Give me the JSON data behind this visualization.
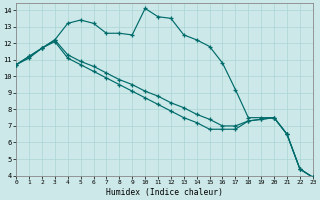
{
  "xlabel": "Humidex (Indice chaleur)",
  "xlim": [
    0,
    23
  ],
  "ylim": [
    4,
    14.4
  ],
  "xticks": [
    0,
    1,
    2,
    3,
    4,
    5,
    6,
    7,
    8,
    9,
    10,
    11,
    12,
    13,
    14,
    15,
    16,
    17,
    18,
    19,
    20,
    21,
    22,
    23
  ],
  "yticks": [
    4,
    5,
    6,
    7,
    8,
    9,
    10,
    11,
    12,
    13,
    14
  ],
  "bg_color": "#cce8e8",
  "line_color": "#006b6b",
  "grid_color": "#aad4d4",
  "line1_x": [
    0,
    1,
    2,
    3,
    4,
    5,
    6,
    7,
    8,
    9,
    10,
    11,
    12,
    13,
    14,
    15,
    16,
    17,
    18,
    19,
    20,
    21,
    22,
    23
  ],
  "line1_y": [
    10.7,
    11.1,
    11.7,
    12.2,
    13.2,
    13.4,
    13.2,
    12.6,
    12.6,
    12.5,
    14.1,
    13.6,
    13.5,
    12.5,
    12.2,
    11.8,
    10.8,
    9.2,
    7.5,
    7.5,
    7.5,
    6.5,
    4.4,
    3.9
  ],
  "line2_x": [
    0,
    1,
    2,
    3,
    4,
    5,
    6,
    7,
    8,
    9,
    10,
    11,
    12,
    13,
    14,
    15,
    16,
    17,
    18,
    19,
    20,
    21,
    22,
    23
  ],
  "line2_y": [
    10.7,
    11.2,
    11.7,
    12.1,
    11.1,
    10.7,
    10.3,
    9.9,
    9.5,
    9.1,
    8.7,
    8.3,
    7.9,
    7.5,
    7.2,
    6.8,
    6.8,
    6.8,
    7.3,
    7.4,
    7.5,
    6.5,
    4.4,
    3.9
  ],
  "line3_x": [
    0,
    1,
    2,
    3,
    4,
    5,
    6,
    7,
    8,
    9,
    10,
    11,
    12,
    13,
    14,
    15,
    16,
    17,
    18,
    19,
    20,
    21,
    22,
    23
  ],
  "line3_y": [
    10.7,
    11.2,
    11.7,
    12.2,
    11.3,
    10.9,
    10.6,
    10.2,
    9.8,
    9.5,
    9.1,
    8.8,
    8.4,
    8.1,
    7.7,
    7.4,
    7.0,
    7.0,
    7.3,
    7.4,
    7.5,
    6.5,
    4.4,
    3.9
  ]
}
